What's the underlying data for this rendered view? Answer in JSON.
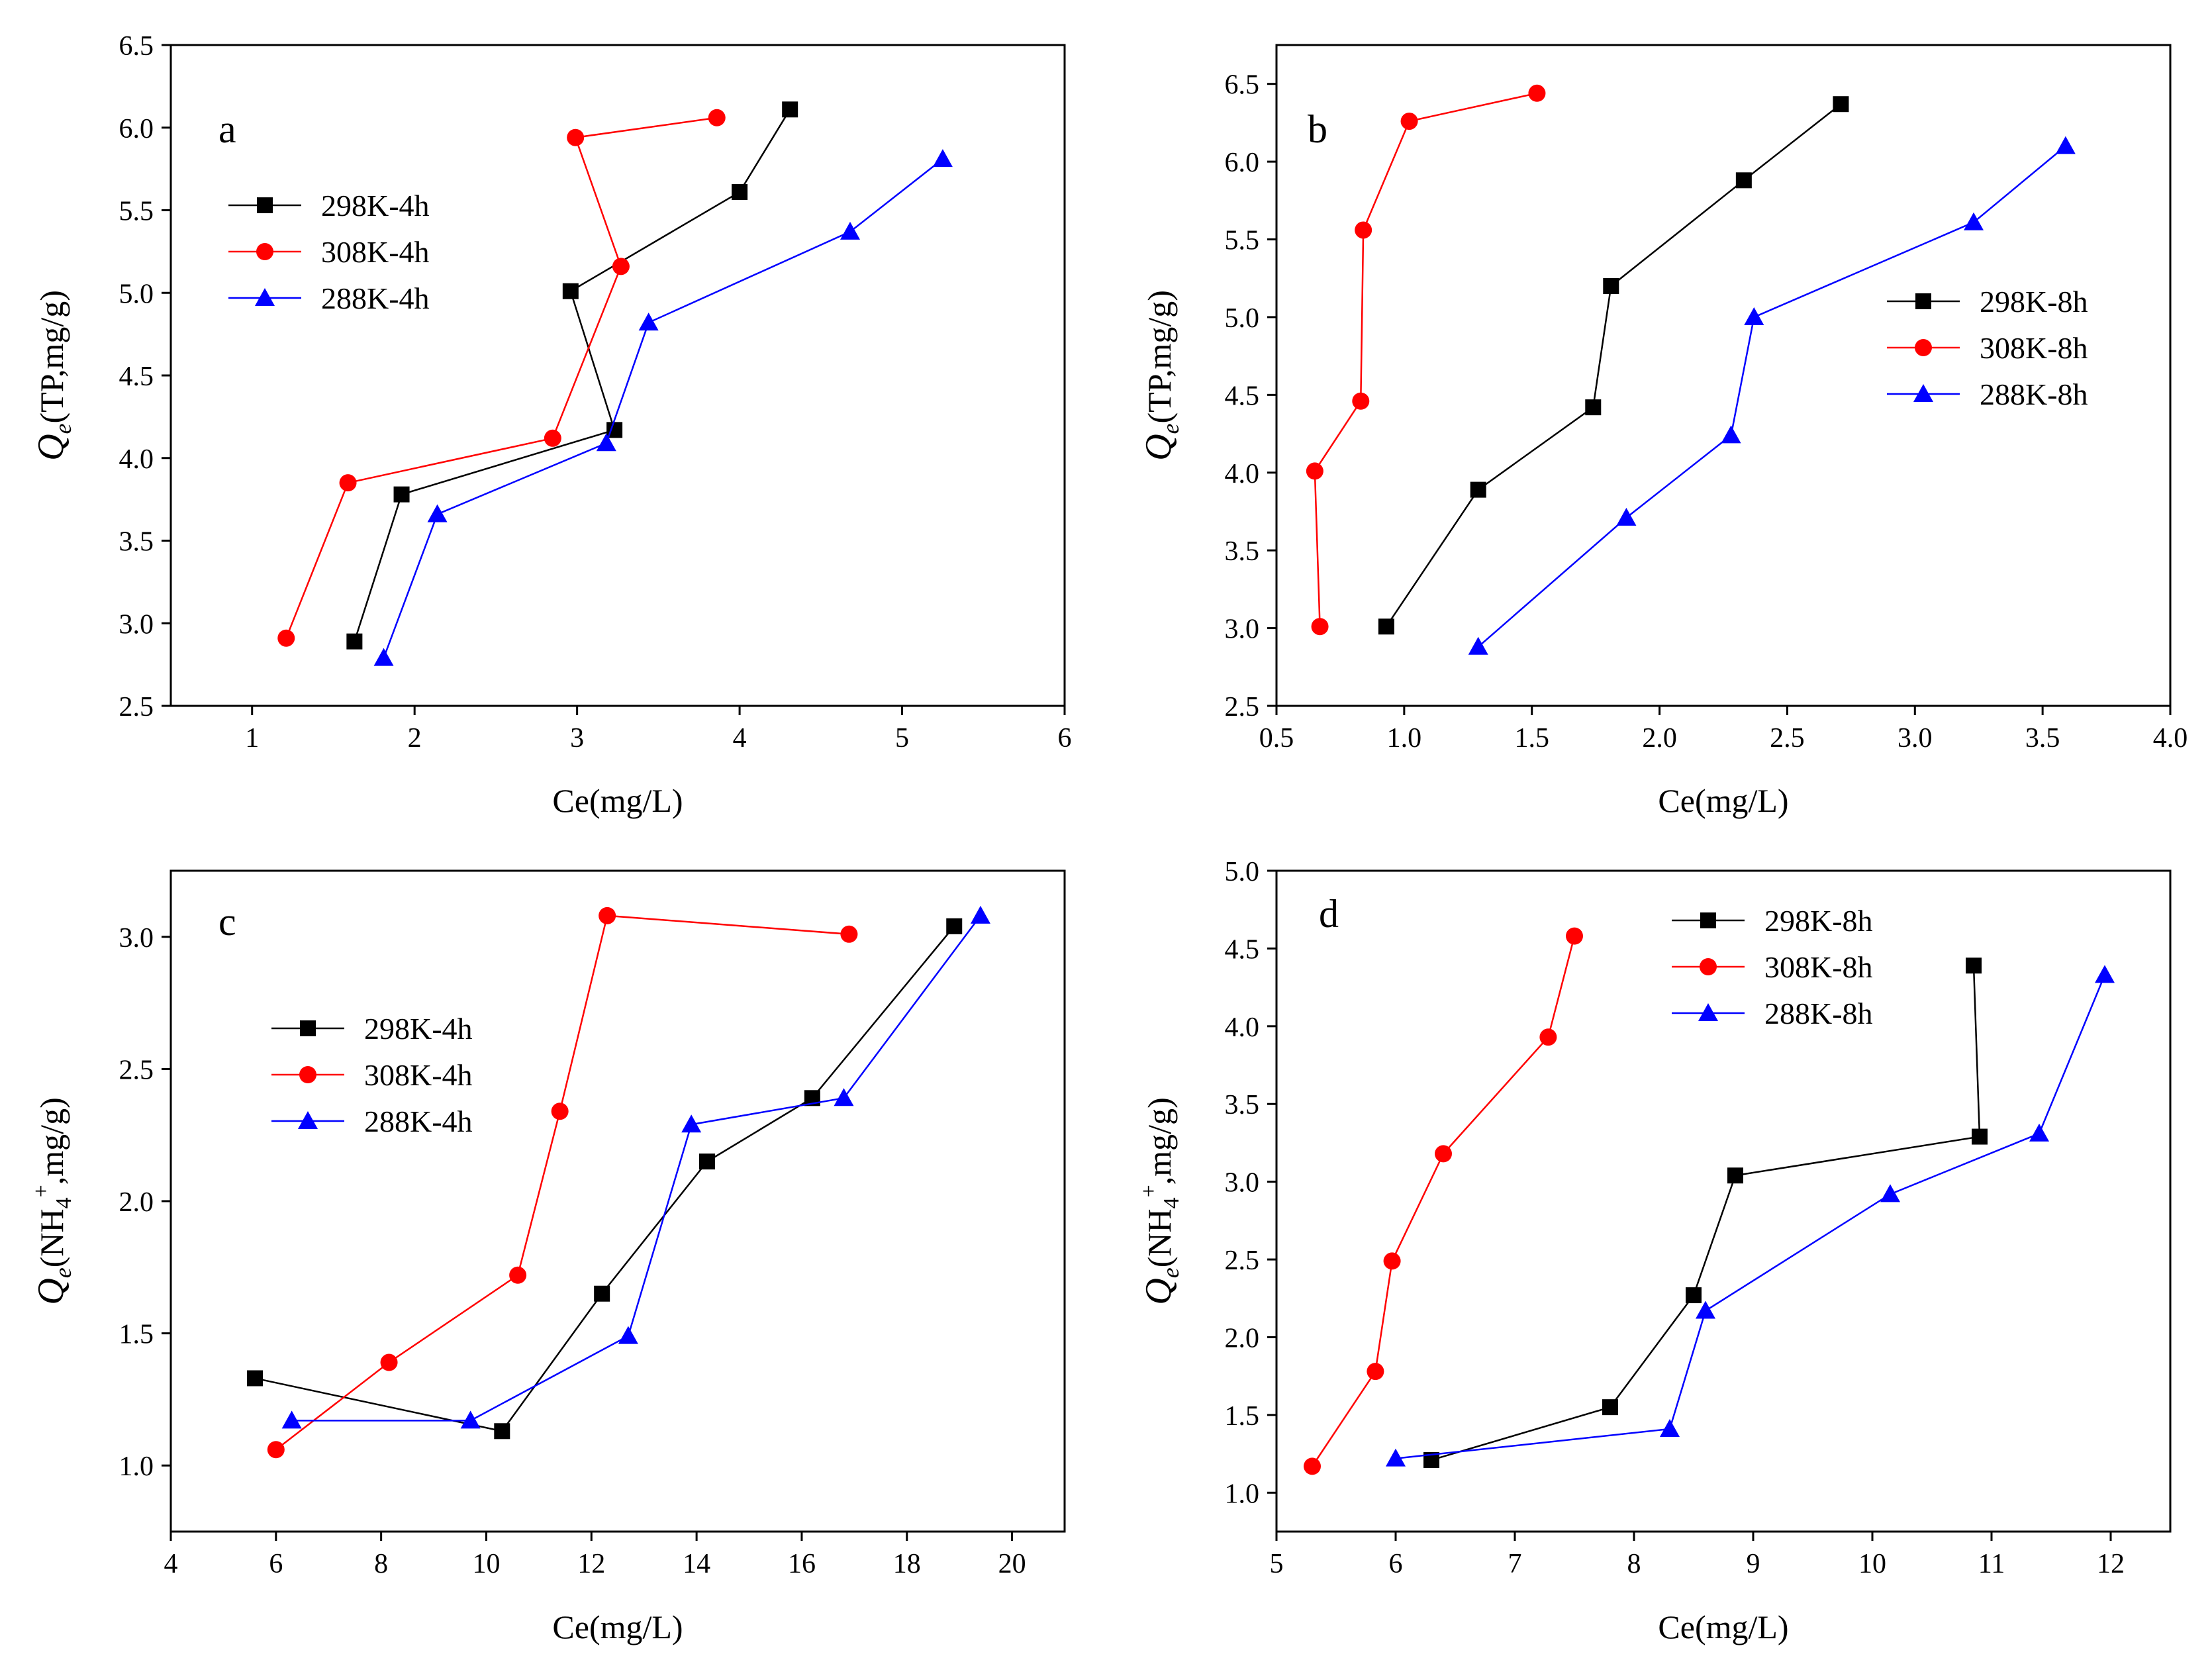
{
  "chart_data": [
    {
      "type": "line",
      "panel_label": "a",
      "xlabel": "Ce(mg/L)",
      "ylabel": {
        "q": "Q",
        "sub": "e",
        "rest": "(TP,mg/g)",
        "sup": "",
        "rest2": ""
      },
      "xlim": [
        0.5,
        6
      ],
      "ylim": [
        2.5,
        6.5
      ],
      "xticks": [
        1,
        2,
        3,
        4,
        5,
        6
      ],
      "xtick_labels": [
        "1",
        "2",
        "3",
        "4",
        "5",
        "6"
      ],
      "yticks": [
        2.5,
        3.0,
        3.5,
        4.0,
        4.5,
        5.0,
        5.5,
        6.0,
        6.5
      ],
      "ytick_labels": [
        "2.5",
        "3.0",
        "3.5",
        "4.0",
        "4.5",
        "5.0",
        "5.5",
        "6.0",
        "6.5"
      ],
      "legend_position": "middle-left",
      "series": [
        {
          "name": "298K-4h",
          "color": "#000000",
          "marker": "square",
          "x": [
            1.63,
            1.92,
            3.23,
            2.96,
            4.0,
            4.31
          ],
          "y": [
            2.89,
            3.78,
            4.17,
            5.01,
            5.61,
            6.11
          ]
        },
        {
          "name": "308K-4h",
          "color": "#ff0000",
          "marker": "circle",
          "x": [
            1.21,
            1.59,
            2.85,
            3.27,
            2.99,
            3.86
          ],
          "y": [
            2.91,
            3.85,
            4.12,
            5.16,
            5.94,
            6.06
          ]
        },
        {
          "name": "288K-4h",
          "color": "#0000ff",
          "marker": "triangle",
          "x": [
            1.81,
            2.14,
            3.18,
            3.44,
            4.68,
            5.25
          ],
          "y": [
            2.79,
            3.66,
            4.09,
            4.82,
            5.37,
            5.81
          ]
        }
      ]
    },
    {
      "type": "line",
      "panel_label": "b",
      "xlabel": "Ce(mg/L)",
      "ylabel": {
        "q": "Q",
        "sub": "e",
        "rest": "(TP,mg/g)",
        "sup": "",
        "rest2": ""
      },
      "xlim": [
        0.5,
        4.0
      ],
      "ylim": [
        2.5,
        6.75
      ],
      "xticks": [
        0.5,
        1.0,
        1.5,
        2.0,
        2.5,
        3.0,
        3.5,
        4.0
      ],
      "xtick_labels": [
        "0.5",
        "1.0",
        "1.5",
        "2.0",
        "2.5",
        "3.0",
        "3.5",
        "4.0"
      ],
      "yticks": [
        2.5,
        3.0,
        3.5,
        4.0,
        4.5,
        5.0,
        5.5,
        6.0,
        6.5
      ],
      "ytick_labels": [
        "2.5",
        "3.0",
        "3.5",
        "4.0",
        "4.5",
        "5.0",
        "5.5",
        "6.0",
        "6.5"
      ],
      "legend_position": "middle-right",
      "series": [
        {
          "name": "298K-8h",
          "color": "#000000",
          "marker": "square",
          "x": [
            0.93,
            1.29,
            1.74,
            1.81,
            2.33,
            2.71
          ],
          "y": [
            3.01,
            3.89,
            4.42,
            5.2,
            5.88,
            6.37
          ]
        },
        {
          "name": "308K-8h",
          "color": "#ff0000",
          "marker": "circle",
          "x": [
            0.67,
            0.65,
            0.83,
            0.84,
            1.02,
            1.52
          ],
          "y": [
            3.01,
            4.01,
            4.46,
            5.56,
            6.26,
            6.44
          ]
        },
        {
          "name": "288K-8h",
          "color": "#0000ff",
          "marker": "triangle",
          "x": [
            1.29,
            1.87,
            2.28,
            2.37,
            3.23,
            3.59
          ],
          "y": [
            2.88,
            3.71,
            4.24,
            5.0,
            5.61,
            6.1
          ]
        }
      ]
    },
    {
      "type": "line",
      "panel_label": "c",
      "xlabel": "Ce(mg/L)",
      "ylabel": {
        "q": "Q",
        "sub": "e",
        "rest": "(NH",
        "sub2": "4",
        "sup": "+",
        "rest2": ",mg/g)"
      },
      "xlim": [
        4,
        21
      ],
      "ylim": [
        0.75,
        3.25
      ],
      "xticks": [
        4,
        6,
        8,
        10,
        12,
        14,
        16,
        18,
        20
      ],
      "xtick_labels": [
        "4",
        "6",
        "8",
        "10",
        "12",
        "14",
        "16",
        "18",
        "20"
      ],
      "yticks": [
        1.0,
        1.5,
        2.0,
        2.5,
        3.0
      ],
      "ytick_labels": [
        "1.0",
        "1.5",
        "2.0",
        "2.5",
        "3.0"
      ],
      "legend_position": "middle-left",
      "series": [
        {
          "name": "298K-4h",
          "color": "#000000",
          "marker": "square",
          "x": [
            5.6,
            10.3,
            12.2,
            14.2,
            16.2,
            18.9
          ],
          "y": [
            1.33,
            1.13,
            1.65,
            2.15,
            2.39,
            3.04
          ]
        },
        {
          "name": "308K-4h",
          "color": "#ff0000",
          "marker": "circle",
          "x": [
            6.0,
            8.15,
            10.6,
            11.4,
            12.3,
            16.9
          ],
          "y": [
            1.06,
            1.39,
            1.72,
            2.34,
            3.08,
            3.01
          ]
        },
        {
          "name": "288K-4h",
          "color": "#0000ff",
          "marker": "triangle",
          "x": [
            6.3,
            9.7,
            12.7,
            13.9,
            16.8,
            19.4
          ],
          "y": [
            1.17,
            1.17,
            1.49,
            2.29,
            2.39,
            3.08
          ]
        }
      ]
    },
    {
      "type": "line",
      "panel_label": "d",
      "xlabel": "Ce(mg/L)",
      "ylabel": {
        "q": "Q",
        "sub": "e",
        "rest": "(NH",
        "sub2": "4",
        "sup": "+",
        "rest2": ",mg/g)"
      },
      "xlim": [
        5,
        12.5
      ],
      "ylim": [
        0.75,
        5.0
      ],
      "xticks": [
        5,
        6,
        7,
        8,
        9,
        10,
        11,
        12
      ],
      "xtick_labels": [
        "5",
        "6",
        "7",
        "8",
        "9",
        "10",
        "11",
        "12"
      ],
      "yticks": [
        1.0,
        1.5,
        2.0,
        2.5,
        3.0,
        3.5,
        4.0,
        4.5,
        5.0
      ],
      "ytick_labels": [
        "1.0",
        "1.5",
        "2.0",
        "2.5",
        "3.0",
        "3.5",
        "4.0",
        "4.5",
        "5.0"
      ],
      "legend_position": "top-center",
      "series": [
        {
          "name": "298K-8h",
          "color": "#000000",
          "marker": "square",
          "x": [
            6.3,
            7.8,
            8.5,
            8.85,
            10.9,
            10.85
          ],
          "y": [
            1.21,
            1.55,
            2.27,
            3.04,
            3.29,
            4.39
          ]
        },
        {
          "name": "308K-8h",
          "color": "#ff0000",
          "marker": "circle",
          "x": [
            5.3,
            5.83,
            5.97,
            6.4,
            7.28,
            7.5
          ],
          "y": [
            1.17,
            1.78,
            2.49,
            3.18,
            3.93,
            4.58
          ]
        },
        {
          "name": "288K-8h",
          "color": "#0000ff",
          "marker": "triangle",
          "x": [
            6.0,
            8.3,
            8.6,
            10.15,
            11.4,
            11.95
          ],
          "y": [
            1.22,
            1.41,
            2.17,
            2.92,
            3.31,
            4.33
          ]
        }
      ]
    }
  ]
}
